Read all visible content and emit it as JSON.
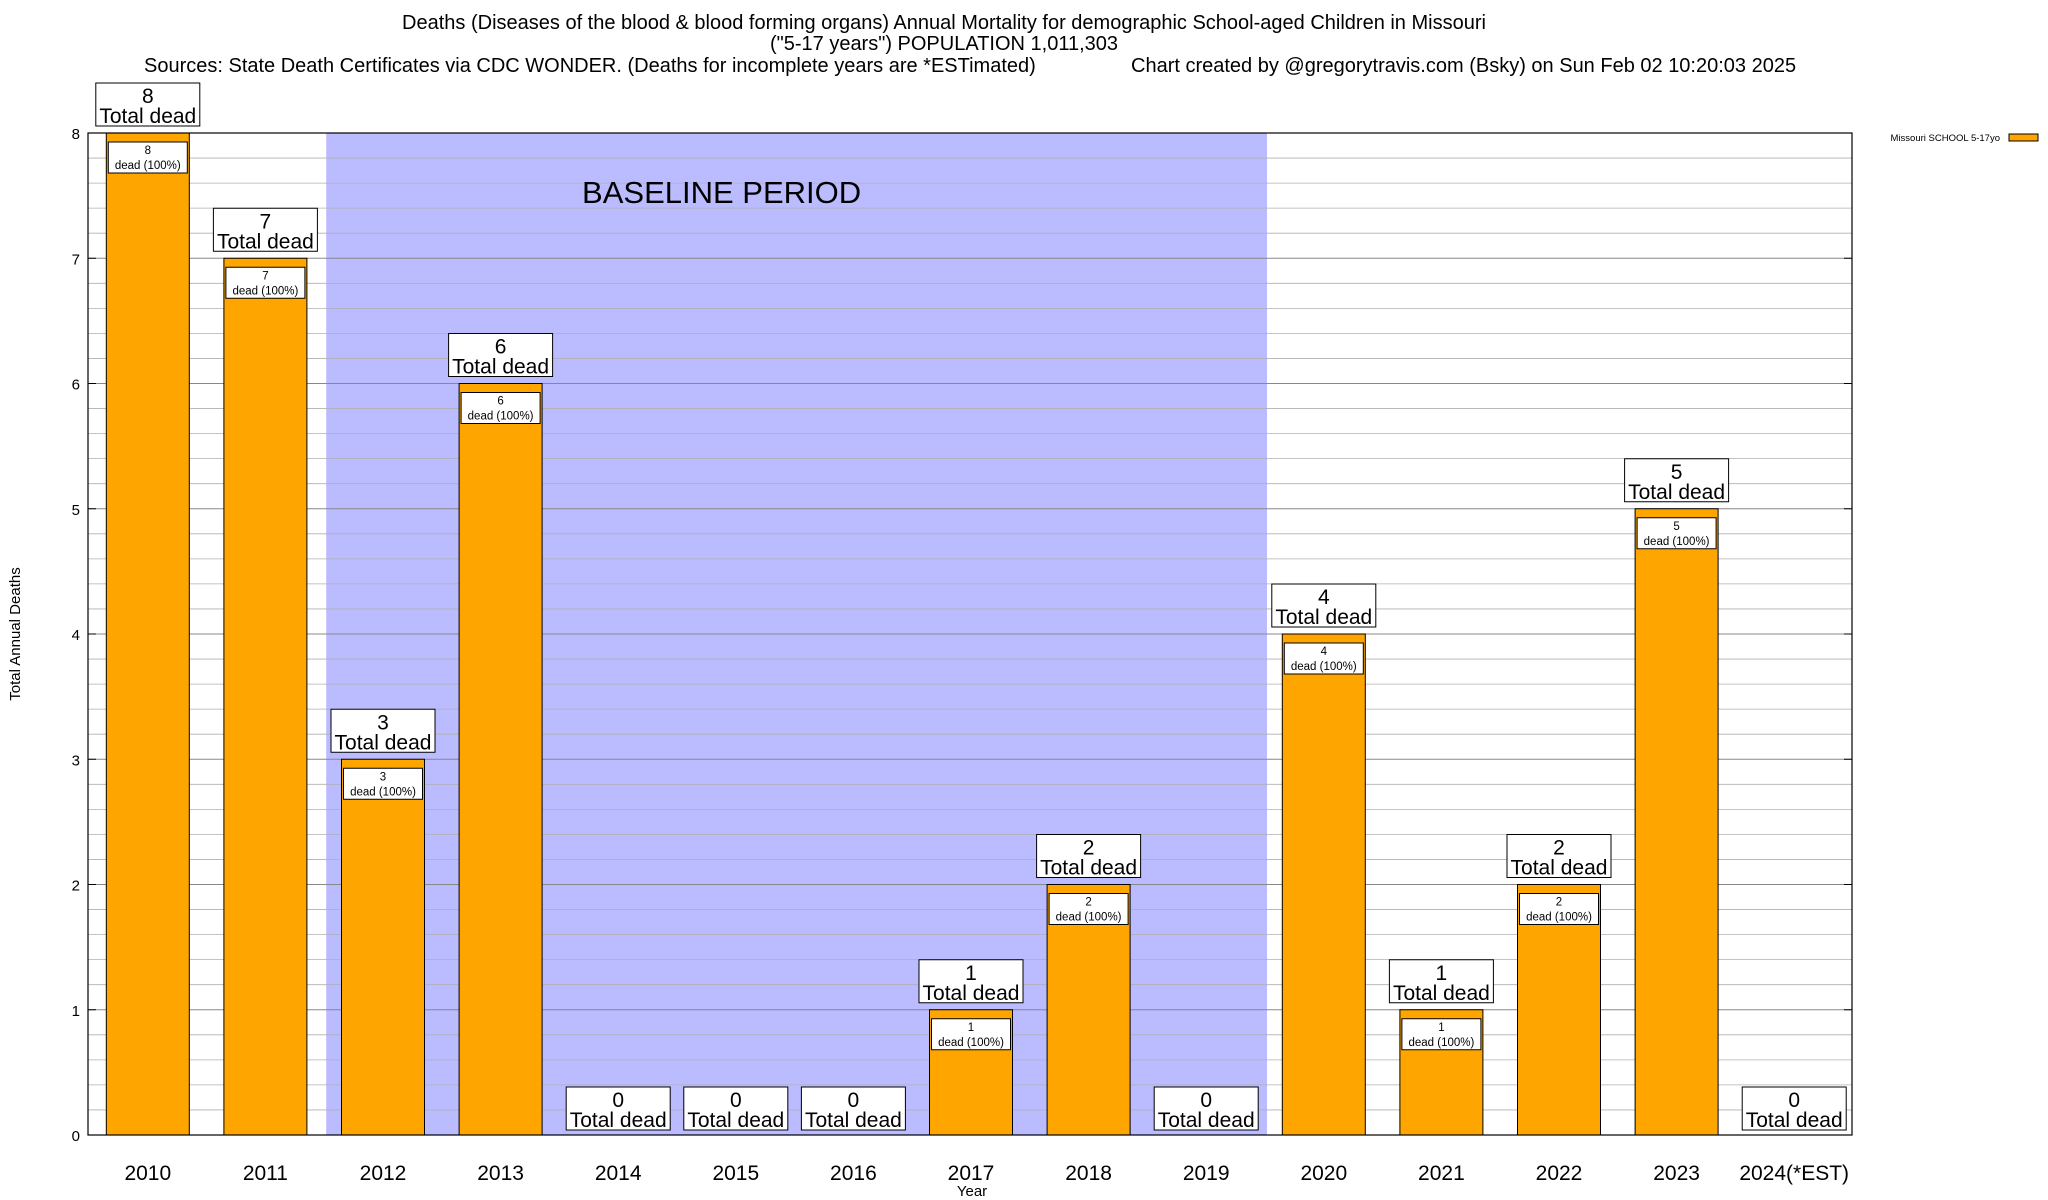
{
  "header": {
    "title_line1": "Deaths (Diseases of the blood & blood forming organs) Annual Mortality for demographic School-aged Children in Missouri",
    "title_line2": "(\"5-17 years\") POPULATION 1,011,303",
    "sources": "Sources: State Death Certificates via CDC WONDER. (Deaths for incomplete years are *ESTimated)",
    "credit": "Chart created by @gregorytravis.com (Bsky) on Sun Feb 02 10:20:03 2025"
  },
  "chart_data": {
    "type": "bar",
    "categories": [
      "2010",
      "2011",
      "2012",
      "2013",
      "2014",
      "2015",
      "2016",
      "2017",
      "2018",
      "2019",
      "2020",
      "2021",
      "2022",
      "2023",
      "2024(*EST)"
    ],
    "series": [
      {
        "name": "Missouri SCHOOL 5-17yo",
        "values": [
          8,
          7,
          3,
          6,
          0,
          0,
          0,
          1,
          2,
          0,
          4,
          1,
          2,
          5,
          0
        ]
      }
    ],
    "percent_label": "(100%)",
    "dead_word": "dead",
    "total_dead_label": "Total dead",
    "xlabel": "Year",
    "ylabel": "Total Annual Deaths",
    "ylim": [
      0,
      8
    ],
    "yticks": [
      0,
      1,
      2,
      3,
      4,
      5,
      6,
      7,
      8
    ],
    "grid": true,
    "legend": "top-right",
    "baseline": {
      "label": "BASELINE PERIOD",
      "from": "2012",
      "to": "2019"
    },
    "colors": {
      "bar": "#ffa500",
      "baseline": "#bbbbff",
      "grid": "#b0b0b0"
    }
  }
}
